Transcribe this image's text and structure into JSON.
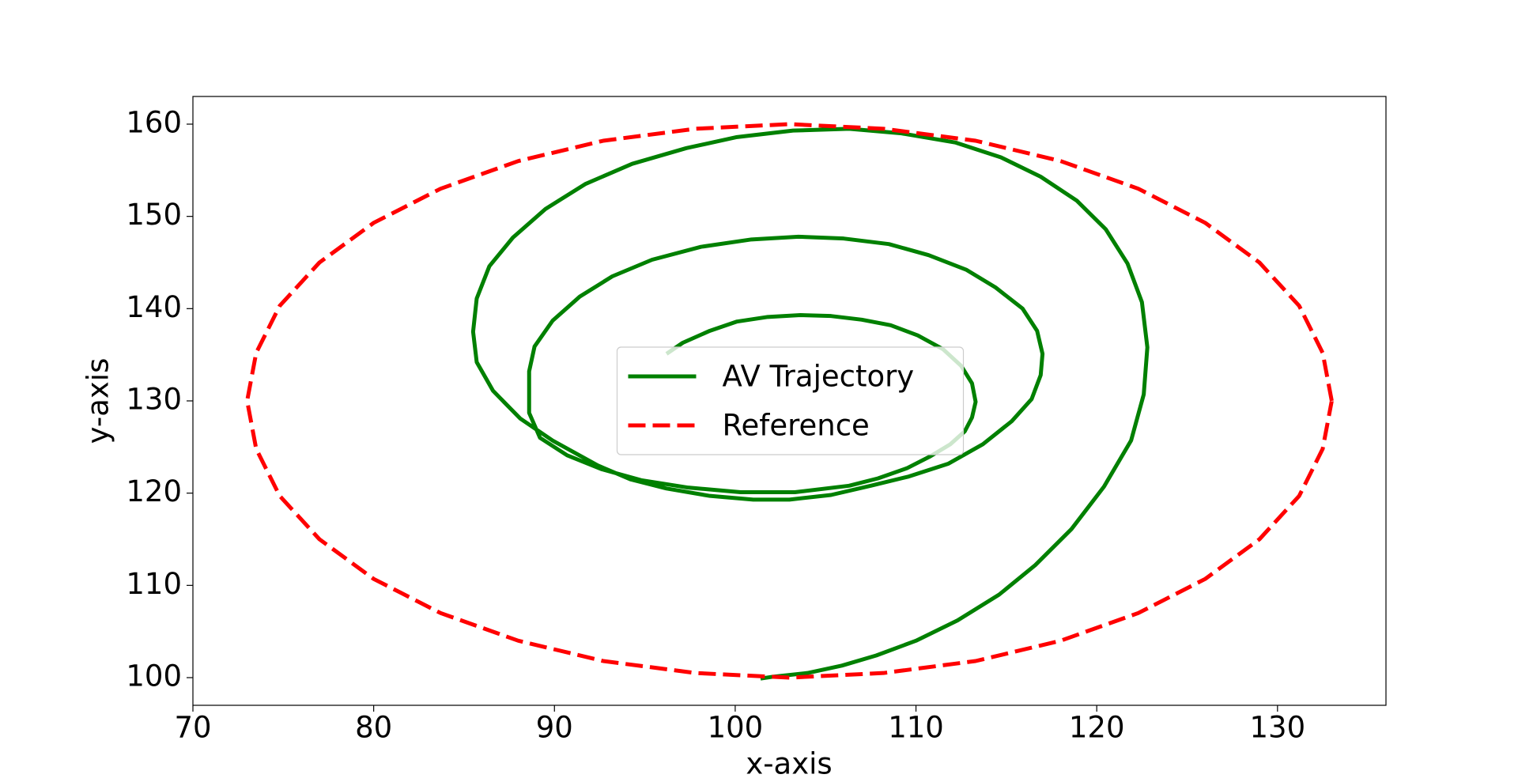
{
  "chart_data": {
    "type": "line",
    "xlabel": "x-axis",
    "ylabel": "y-axis",
    "xlim": [
      70,
      136
    ],
    "ylim": [
      97,
      163
    ],
    "xticks": [
      70,
      80,
      90,
      100,
      110,
      120,
      130
    ],
    "yticks": [
      100,
      110,
      120,
      130,
      140,
      150,
      160
    ],
    "grid": false,
    "legend": "center",
    "series": [
      {
        "name": "AV Trajectory",
        "color": "#008000",
        "style": "solid",
        "x": [
          96.2,
          97.1,
          98.6,
          100.1,
          101.8,
          103.6,
          105.3,
          107.0,
          108.6,
          110.1,
          111.5,
          112.5,
          113.1,
          113.3,
          113.1,
          112.7,
          111.9,
          110.8,
          109.5,
          107.9,
          106.3,
          103.3,
          100.3,
          97.4,
          94.8,
          92.6,
          90.7,
          89.2,
          88.6,
          88.6,
          88.9,
          89.9,
          91.4,
          93.2,
          95.4,
          98.1,
          100.9,
          103.5,
          106.0,
          108.5,
          110.7,
          112.8,
          114.4,
          115.9,
          116.7,
          117.0,
          116.9,
          116.4,
          115.3,
          113.7,
          111.8,
          109.6,
          107.5,
          105.3,
          103.0,
          101.0,
          98.6,
          96.2,
          94.2,
          92.4,
          89.9,
          88.1,
          86.6,
          85.7,
          85.5,
          85.7,
          86.4,
          87.7,
          89.5,
          91.7,
          94.3,
          97.3,
          100.1,
          103.2,
          106.3,
          109.2,
          112.2,
          114.7,
          116.9,
          118.9,
          120.5,
          121.7,
          122.5,
          122.8,
          122.6,
          121.9,
          120.4,
          118.6,
          116.6,
          114.6,
          112.3,
          110.0,
          107.8,
          105.9,
          104.0,
          102.1,
          101.4
        ],
        "values": [
          135.1,
          136.3,
          137.6,
          138.6,
          139.1,
          139.3,
          139.2,
          138.8,
          138.2,
          137.1,
          135.6,
          133.8,
          131.9,
          129.9,
          128.2,
          126.7,
          125.3,
          124.0,
          122.7,
          121.6,
          120.8,
          120.1,
          120.1,
          120.6,
          121.4,
          122.6,
          124.1,
          126.0,
          128.7,
          133.2,
          135.9,
          138.7,
          141.3,
          143.5,
          145.3,
          146.7,
          147.5,
          147.8,
          147.6,
          147.0,
          145.8,
          144.2,
          142.3,
          140.0,
          137.6,
          135.1,
          132.8,
          130.2,
          127.8,
          125.3,
          123.2,
          121.8,
          120.8,
          119.8,
          119.3,
          119.3,
          119.7,
          120.5,
          121.5,
          123.0,
          125.7,
          128.1,
          131.1,
          134.2,
          137.5,
          141.1,
          144.6,
          147.7,
          150.8,
          153.5,
          155.7,
          157.4,
          158.6,
          159.3,
          159.5,
          159.0,
          158.0,
          156.4,
          154.3,
          151.7,
          148.6,
          144.9,
          140.7,
          135.8,
          130.7,
          125.7,
          120.7,
          116.1,
          112.2,
          109.0,
          106.2,
          104.0,
          102.4,
          101.3,
          100.5,
          100.1,
          99.9
        ]
      },
      {
        "name": "Reference",
        "color": "#ff0000",
        "style": "dashed",
        "x": [
          133,
          132.5,
          131.2,
          129,
          126,
          122.3,
          118,
          113.3,
          108.2,
          103,
          97.8,
          92.7,
          88,
          83.7,
          80,
          77,
          74.8,
          73.5,
          73,
          73.5,
          74.8,
          77,
          80,
          83.7,
          88,
          92.7,
          97.8,
          103,
          108.2,
          113.3,
          118,
          122.3,
          126,
          129,
          131.2,
          132.5,
          133
        ],
        "values": [
          130,
          135.2,
          140.3,
          145,
          149.3,
          153,
          156,
          158.2,
          159.5,
          160,
          159.5,
          158.2,
          156,
          153,
          149.3,
          145,
          140.3,
          135.2,
          130,
          124.8,
          119.7,
          115,
          110.7,
          107,
          104,
          101.8,
          100.5,
          100,
          100.5,
          101.8,
          104,
          107,
          110.7,
          115,
          119.7,
          124.8,
          130
        ]
      }
    ]
  }
}
